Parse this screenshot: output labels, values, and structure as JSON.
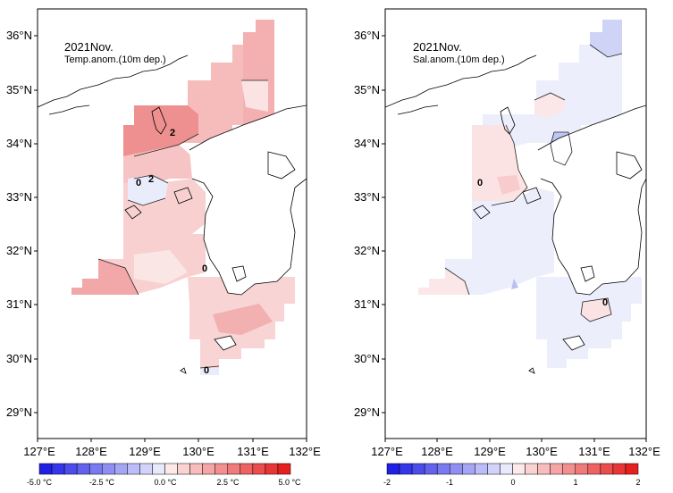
{
  "colors": {
    "pos_light": "#fbe3e3",
    "pos_mid": "#f6bcbc",
    "pos_strong": "#ef9999",
    "pos_max": "#e77070",
    "neg_light": "#ebedfb",
    "neg_mid": "#cdd2f7",
    "cb_neg_end": "#1f1fe6",
    "cb_pos_end": "#e61f1f",
    "land": "#ffffff",
    "frame": "#000000"
  },
  "panels": [
    {
      "id": "temp",
      "title": "2021Nov.",
      "subtitle": "Temp.anom.(10m dep.)",
      "y_ticks": [
        "36°N",
        "35°N",
        "34°N",
        "33°N",
        "32°N",
        "31°N",
        "30°N",
        "29°N"
      ],
      "x_ticks": [
        "127°E",
        "128°E",
        "129°E",
        "130°E",
        "131°E",
        "132°E"
      ],
      "contour_labels": [
        "2",
        "0",
        "2",
        "0",
        "0"
      ],
      "colorbar_labels": [
        "-5.0 °C",
        "-2.5 °C",
        "0.0 °C",
        "2.5 °C",
        "5.0 °C"
      ]
    },
    {
      "id": "sal",
      "title": "2021Nov.",
      "subtitle": "Sal.anom.(10m dep.)",
      "y_ticks": [
        "36°N",
        "35°N",
        "34°N",
        "33°N",
        "32°N",
        "31°N",
        "30°N",
        "29°N"
      ],
      "x_ticks": [
        "127°E",
        "128°E",
        "129°E",
        "130°E",
        "131°E",
        "132°E"
      ],
      "contour_labels": [
        "0",
        "0"
      ],
      "colorbar_labels": [
        "-2",
        "-1",
        "0",
        "1",
        "2"
      ]
    }
  ]
}
